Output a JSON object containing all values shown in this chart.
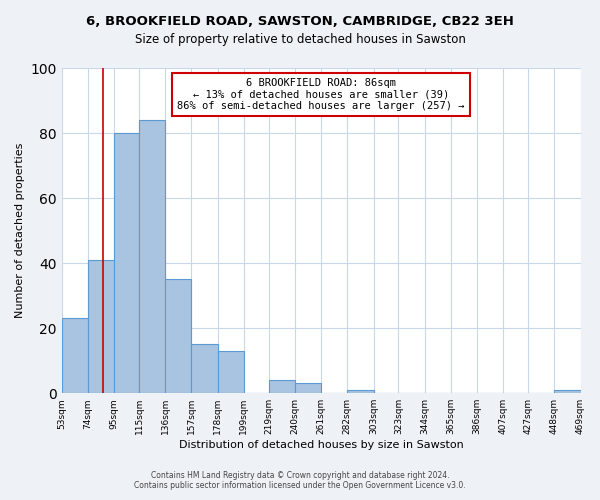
{
  "title": "6, BROOKFIELD ROAD, SAWSTON, CAMBRIDGE, CB22 3EH",
  "subtitle": "Size of property relative to detached houses in Sawston",
  "xlabel": "Distribution of detached houses by size in Sawston",
  "ylabel": "Number of detached properties",
  "footer_line1": "Contains HM Land Registry data © Crown copyright and database right 2024.",
  "footer_line2": "Contains public sector information licensed under the Open Government Licence v3.0.",
  "bin_labels": [
    "53sqm",
    "74sqm",
    "95sqm",
    "115sqm",
    "136sqm",
    "157sqm",
    "178sqm",
    "199sqm",
    "219sqm",
    "240sqm",
    "261sqm",
    "282sqm",
    "303sqm",
    "323sqm",
    "344sqm",
    "365sqm",
    "386sqm",
    "407sqm",
    "427sqm",
    "448sqm",
    "469sqm"
  ],
  "bin_edges": [
    53,
    74,
    95,
    115,
    136,
    157,
    178,
    199,
    219,
    240,
    261,
    282,
    303,
    323,
    344,
    365,
    386,
    407,
    427,
    448,
    469
  ],
  "bar_heights": [
    23,
    41,
    80,
    84,
    35,
    15,
    13,
    0,
    4,
    3,
    0,
    1,
    0,
    0,
    0,
    0,
    0,
    0,
    0,
    1
  ],
  "bar_color": "#a8c4e0",
  "bar_edge_color": "#5b9bd5",
  "property_size": 86,
  "property_label": "6 BROOKFIELD ROAD: 86sqm",
  "annotation_line1": "← 13% of detached houses are smaller (39)",
  "annotation_line2": "86% of semi-detached houses are larger (257) →",
  "vline_color": "#cc0000",
  "annotation_box_edge_color": "#cc0000",
  "ylim": [
    0,
    100
  ],
  "bg_color": "#eef2f7",
  "plot_bg_color": "#ffffff",
  "grid_color": "#c8d8e8"
}
